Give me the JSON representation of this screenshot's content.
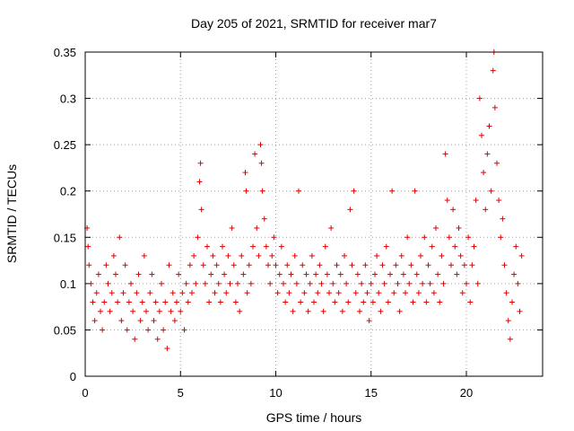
{
  "chart_data": {
    "type": "scatter",
    "title": "Day 205 of 2021, SRMTID for receiver mar7",
    "xlabel": "GPS time / hours",
    "ylabel": "SRMTID / TECUs",
    "xlim": [
      0,
      24
    ],
    "ylim": [
      0,
      0.35
    ],
    "xticks": [
      0,
      5,
      10,
      15,
      20
    ],
    "xtick_labels": [
      "0",
      "5",
      "10",
      "15",
      "20"
    ],
    "yticks": [
      0,
      0.05,
      0.1,
      0.15,
      0.2,
      0.25,
      0.3,
      0.35
    ],
    "ytick_labels": [
      "0",
      "0.05",
      "0.1",
      "0.15",
      "0.2",
      "0.25",
      "0.3",
      "0.35"
    ],
    "grid": true,
    "marker": "plus",
    "color": "#e00000",
    "series": [
      {
        "name": "SRMTID",
        "points": [
          [
            0.1,
            0.16
          ],
          [
            0.15,
            0.14
          ],
          [
            0.2,
            0.12
          ],
          [
            0.3,
            0.1
          ],
          [
            0.4,
            0.08
          ],
          [
            0.5,
            0.06
          ],
          [
            0.6,
            0.09
          ],
          [
            0.7,
            0.11
          ],
          [
            0.8,
            0.07
          ],
          [
            0.9,
            0.05
          ],
          [
            1.0,
            0.08
          ],
          [
            1.1,
            0.12
          ],
          [
            1.2,
            0.1
          ],
          [
            1.3,
            0.07
          ],
          [
            1.4,
            0.09
          ],
          [
            1.5,
            0.13
          ],
          [
            1.6,
            0.11
          ],
          [
            1.7,
            0.08
          ],
          [
            1.8,
            0.15
          ],
          [
            1.9,
            0.06
          ],
          [
            2.0,
            0.09
          ],
          [
            2.1,
            0.12
          ],
          [
            2.2,
            0.05
          ],
          [
            2.3,
            0.08
          ],
          [
            2.4,
            0.1
          ],
          [
            2.5,
            0.07
          ],
          [
            2.6,
            0.04
          ],
          [
            2.7,
            0.09
          ],
          [
            2.8,
            0.11
          ],
          [
            2.9,
            0.06
          ],
          [
            3.0,
            0.08
          ],
          [
            3.1,
            0.13
          ],
          [
            3.2,
            0.07
          ],
          [
            3.3,
            0.05
          ],
          [
            3.4,
            0.09
          ],
          [
            3.5,
            0.11
          ],
          [
            3.6,
            0.06
          ],
          [
            3.7,
            0.08
          ],
          [
            3.8,
            0.04
          ],
          [
            3.9,
            0.07
          ],
          [
            4.0,
            0.1
          ],
          [
            4.1,
            0.05
          ],
          [
            4.2,
            0.08
          ],
          [
            4.3,
            0.03
          ],
          [
            4.4,
            0.12
          ],
          [
            4.5,
            0.07
          ],
          [
            4.6,
            0.09
          ],
          [
            4.7,
            0.06
          ],
          [
            4.8,
            0.08
          ],
          [
            4.9,
            0.11
          ],
          [
            5.0,
            0.07
          ],
          [
            5.1,
            0.09
          ],
          [
            5.2,
            0.05
          ],
          [
            5.3,
            0.1
          ],
          [
            5.4,
            0.08
          ],
          [
            5.5,
            0.12
          ],
          [
            5.6,
            0.09
          ],
          [
            5.7,
            0.13
          ],
          [
            5.8,
            0.1
          ],
          [
            5.9,
            0.15
          ],
          [
            6.0,
            0.21
          ],
          [
            6.05,
            0.23
          ],
          [
            6.1,
            0.18
          ],
          [
            6.2,
            0.12
          ],
          [
            6.3,
            0.1
          ],
          [
            6.4,
            0.14
          ],
          [
            6.5,
            0.08
          ],
          [
            6.6,
            0.11
          ],
          [
            6.7,
            0.13
          ],
          [
            6.8,
            0.09
          ],
          [
            6.9,
            0.12
          ],
          [
            7.0,
            0.1
          ],
          [
            7.1,
            0.08
          ],
          [
            7.2,
            0.14
          ],
          [
            7.3,
            0.11
          ],
          [
            7.4,
            0.09
          ],
          [
            7.5,
            0.13
          ],
          [
            7.6,
            0.1
          ],
          [
            7.7,
            0.16
          ],
          [
            7.8,
            0.12
          ],
          [
            7.9,
            0.08
          ],
          [
            8.0,
            0.1
          ],
          [
            8.1,
            0.07
          ],
          [
            8.2,
            0.13
          ],
          [
            8.3,
            0.11
          ],
          [
            8.4,
            0.22
          ],
          [
            8.45,
            0.2
          ],
          [
            8.5,
            0.09
          ],
          [
            8.6,
            0.12
          ],
          [
            8.7,
            0.1
          ],
          [
            8.8,
            0.14
          ],
          [
            8.9,
            0.24
          ],
          [
            9.0,
            0.16
          ],
          [
            9.1,
            0.13
          ],
          [
            9.2,
            0.25
          ],
          [
            9.25,
            0.23
          ],
          [
            9.3,
            0.2
          ],
          [
            9.4,
            0.17
          ],
          [
            9.5,
            0.14
          ],
          [
            9.6,
            0.12
          ],
          [
            9.7,
            0.1
          ],
          [
            9.8,
            0.13
          ],
          [
            9.9,
            0.15
          ],
          [
            10.0,
            0.12
          ],
          [
            10.1,
            0.09
          ],
          [
            10.2,
            0.11
          ],
          [
            10.3,
            0.14
          ],
          [
            10.4,
            0.1
          ],
          [
            10.5,
            0.08
          ],
          [
            10.6,
            0.12
          ],
          [
            10.7,
            0.09
          ],
          [
            10.8,
            0.11
          ],
          [
            10.9,
            0.07
          ],
          [
            11.0,
            0.13
          ],
          [
            11.1,
            0.1
          ],
          [
            11.2,
            0.2
          ],
          [
            11.3,
            0.08
          ],
          [
            11.4,
            0.12
          ],
          [
            11.5,
            0.09
          ],
          [
            11.6,
            0.11
          ],
          [
            11.7,
            0.07
          ],
          [
            11.8,
            0.1
          ],
          [
            11.9,
            0.13
          ],
          [
            12.0,
            0.08
          ],
          [
            12.1,
            0.11
          ],
          [
            12.2,
            0.09
          ],
          [
            12.3,
            0.12
          ],
          [
            12.4,
            0.1
          ],
          [
            12.5,
            0.07
          ],
          [
            12.6,
            0.14
          ],
          [
            12.7,
            0.11
          ],
          [
            12.8,
            0.09
          ],
          [
            12.9,
            0.16
          ],
          [
            13.0,
            0.1
          ],
          [
            13.1,
            0.08
          ],
          [
            13.2,
            0.12
          ],
          [
            13.3,
            0.09
          ],
          [
            13.4,
            0.11
          ],
          [
            13.5,
            0.07
          ],
          [
            13.6,
            0.13
          ],
          [
            13.7,
            0.1
          ],
          [
            13.8,
            0.08
          ],
          [
            13.9,
            0.18
          ],
          [
            14.0,
            0.12
          ],
          [
            14.1,
            0.2
          ],
          [
            14.2,
            0.09
          ],
          [
            14.3,
            0.11
          ],
          [
            14.4,
            0.07
          ],
          [
            14.5,
            0.1
          ],
          [
            14.6,
            0.08
          ],
          [
            14.7,
            0.12
          ],
          [
            14.8,
            0.09
          ],
          [
            14.9,
            0.06
          ],
          [
            15.0,
            0.1
          ],
          [
            15.1,
            0.08
          ],
          [
            15.2,
            0.11
          ],
          [
            15.3,
            0.13
          ],
          [
            15.4,
            0.09
          ],
          [
            15.5,
            0.07
          ],
          [
            15.6,
            0.12
          ],
          [
            15.7,
            0.1
          ],
          [
            15.8,
            0.14
          ],
          [
            15.9,
            0.08
          ],
          [
            16.0,
            0.11
          ],
          [
            16.1,
            0.2
          ],
          [
            16.2,
            0.09
          ],
          [
            16.3,
            0.12
          ],
          [
            16.4,
            0.1
          ],
          [
            16.5,
            0.07
          ],
          [
            16.6,
            0.13
          ],
          [
            16.7,
            0.11
          ],
          [
            16.8,
            0.09
          ],
          [
            16.9,
            0.15
          ],
          [
            17.0,
            0.1
          ],
          [
            17.1,
            0.12
          ],
          [
            17.2,
            0.08
          ],
          [
            17.3,
            0.2
          ],
          [
            17.4,
            0.11
          ],
          [
            17.5,
            0.09
          ],
          [
            17.6,
            0.13
          ],
          [
            17.7,
            0.1
          ],
          [
            17.8,
            0.15
          ],
          [
            17.9,
            0.08
          ],
          [
            18.0,
            0.12
          ],
          [
            18.1,
            0.1
          ],
          [
            18.2,
            0.14
          ],
          [
            18.3,
            0.09
          ],
          [
            18.4,
            0.16
          ],
          [
            18.5,
            0.11
          ],
          [
            18.6,
            0.08
          ],
          [
            18.7,
            0.13
          ],
          [
            18.8,
            0.1
          ],
          [
            18.9,
            0.24
          ],
          [
            19.0,
            0.19
          ],
          [
            19.1,
            0.15
          ],
          [
            19.2,
            0.12
          ],
          [
            19.3,
            0.18
          ],
          [
            19.4,
            0.14
          ],
          [
            19.5,
            0.11
          ],
          [
            19.6,
            0.16
          ],
          [
            19.7,
            0.13
          ],
          [
            19.8,
            0.09
          ],
          [
            19.9,
            0.12
          ],
          [
            20.0,
            0.1
          ],
          [
            20.1,
            0.15
          ],
          [
            20.2,
            0.08
          ],
          [
            20.3,
            0.12
          ],
          [
            20.4,
            0.14
          ],
          [
            20.5,
            0.19
          ],
          [
            20.6,
            0.1
          ],
          [
            20.7,
            0.3
          ],
          [
            20.8,
            0.26
          ],
          [
            20.9,
            0.22
          ],
          [
            21.0,
            0.18
          ],
          [
            21.1,
            0.24
          ],
          [
            21.2,
            0.27
          ],
          [
            21.3,
            0.2
          ],
          [
            21.4,
            0.33
          ],
          [
            21.45,
            0.35
          ],
          [
            21.5,
            0.29
          ],
          [
            21.6,
            0.23
          ],
          [
            21.7,
            0.19
          ],
          [
            21.8,
            0.15
          ],
          [
            21.9,
            0.17
          ],
          [
            22.0,
            0.12
          ],
          [
            22.1,
            0.09
          ],
          [
            22.2,
            0.06
          ],
          [
            22.3,
            0.04
          ],
          [
            22.4,
            0.08
          ],
          [
            22.5,
            0.11
          ],
          [
            22.6,
            0.14
          ],
          [
            22.7,
            0.1
          ],
          [
            22.8,
            0.07
          ],
          [
            22.9,
            0.13
          ]
        ]
      }
    ]
  }
}
